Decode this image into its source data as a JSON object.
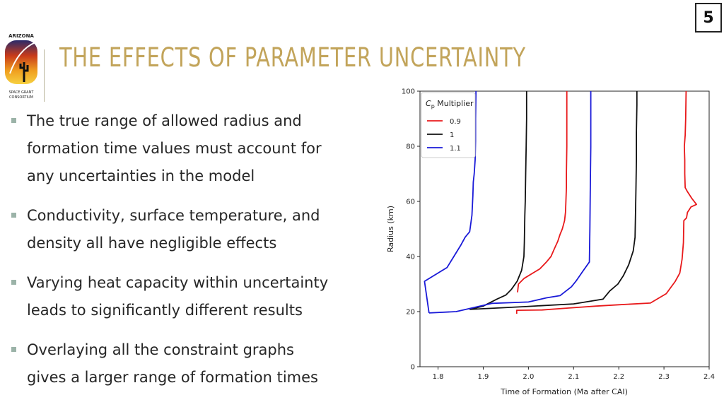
{
  "page_number": "5",
  "logo": {
    "top_text": "ARIZONA",
    "bottom_text_1": "SPACE GRANT",
    "bottom_text_2": "CONSORTIUM"
  },
  "title": "THE EFFECTS OF PARAMETER UNCERTAINTY",
  "bullets": [
    {
      "line1": "The true range of allowed radius and",
      "line2": "formation time values must account for",
      "line3": "any uncertainties in the model"
    },
    {
      "line1": "Conductivity, surface temperature, and",
      "line2": "density all have negligible effects"
    },
    {
      "line1": "Varying heat capacity within uncertainty",
      "line2": "leads to significantly different results"
    },
    {
      "line1": "Overlaying all the constraint graphs",
      "line2": "gives a larger range of formation times"
    }
  ],
  "colors": {
    "title": "#c2a45a",
    "bullet_marker": "#9bb3a8",
    "series_0_9": "#e8191b",
    "series_1": "#111111",
    "series_1_1": "#1a1ad8"
  },
  "chart_data": {
    "type": "line",
    "title": "",
    "xlabel": "Time of Formation (Ma after CAI)",
    "ylabel": "Radius (km)",
    "xlim": [
      1.76,
      2.4
    ],
    "ylim": [
      0,
      100
    ],
    "xticks": [
      "1.8",
      "1.9",
      "2.0",
      "2.1",
      "2.2",
      "2.3",
      "2.4"
    ],
    "yticks": [
      "0",
      "20",
      "40",
      "60",
      "80",
      "100"
    ],
    "grid": false,
    "legend": {
      "title_prefix": "C",
      "title_sub": "p",
      "title_suffix": " Multiplier",
      "placement": "top-left"
    },
    "series": [
      {
        "name": "0.9",
        "color": "#e8191b",
        "points": [
          [
            1.974,
            19.2
          ],
          [
            1.974,
            20.5
          ],
          [
            2.03,
            20.6
          ],
          [
            2.09,
            21.3
          ],
          [
            2.15,
            22.0
          ],
          [
            2.2,
            22.5
          ],
          [
            2.27,
            23.1
          ],
          [
            2.305,
            26.5
          ],
          [
            2.325,
            31.0
          ],
          [
            2.335,
            34.0
          ],
          [
            2.34,
            39.0
          ],
          [
            2.343,
            45.0
          ],
          [
            2.344,
            53.0
          ],
          [
            2.35,
            54.0
          ],
          [
            2.352,
            56.0
          ],
          [
            2.36,
            58.0
          ],
          [
            2.372,
            58.9
          ],
          [
            2.362,
            61.0
          ],
          [
            2.352,
            63.5
          ],
          [
            2.347,
            65.0
          ],
          [
            2.346,
            70.0
          ],
          [
            2.346,
            75.0
          ],
          [
            2.345,
            80.0
          ],
          [
            2.347,
            84.0
          ],
          [
            2.348,
            90.0
          ],
          [
            2.349,
            100
          ]
        ],
        "points_b": [
          [
            1.976,
            27.0
          ],
          [
            1.978,
            30.0
          ],
          [
            1.99,
            32.0
          ],
          [
            2.01,
            34.0
          ],
          [
            2.025,
            35.5
          ],
          [
            2.04,
            38.0
          ],
          [
            2.05,
            40.0
          ],
          [
            2.058,
            43.0
          ],
          [
            2.065,
            45.5
          ],
          [
            2.07,
            48.0
          ],
          [
            2.075,
            50.0
          ],
          [
            2.08,
            53.0
          ],
          [
            2.082,
            56.0
          ],
          [
            2.083,
            60.0
          ],
          [
            2.084,
            65.0
          ],
          [
            2.084,
            70.0
          ],
          [
            2.085,
            80.0
          ],
          [
            2.085,
            90.0
          ],
          [
            2.085,
            100
          ]
        ]
      },
      {
        "name": "1",
        "color": "#111111",
        "points": [
          [
            1.87,
            20.8
          ],
          [
            1.9,
            22.0
          ],
          [
            1.93,
            24.5
          ],
          [
            1.95,
            26.0
          ],
          [
            1.962,
            28.0
          ],
          [
            1.975,
            31.0
          ],
          [
            1.985,
            35.0
          ],
          [
            1.99,
            40.0
          ],
          [
            1.991,
            45.0
          ],
          [
            1.992,
            55.0
          ],
          [
            1.993,
            60.0
          ],
          [
            1.994,
            70.0
          ],
          [
            1.995,
            80.0
          ],
          [
            1.996,
            90.0
          ],
          [
            1.996,
            100
          ]
        ],
        "points_b": [
          [
            1.87,
            20.8
          ],
          [
            1.99,
            21.8
          ],
          [
            2.1,
            22.8
          ],
          [
            2.165,
            24.5
          ],
          [
            2.18,
            27.5
          ],
          [
            2.198,
            30.0
          ],
          [
            2.21,
            33.0
          ],
          [
            2.222,
            37.0
          ],
          [
            2.232,
            42.0
          ],
          [
            2.236,
            47.0
          ],
          [
            2.237,
            55.0
          ],
          [
            2.238,
            65.0
          ],
          [
            2.239,
            75.0
          ],
          [
            2.239,
            85.0
          ],
          [
            2.24,
            95.0
          ],
          [
            2.24,
            100
          ]
        ]
      },
      {
        "name": "1.1",
        "color": "#1a1ad8",
        "points": [
          [
            1.78,
            19.5
          ],
          [
            1.84,
            20.0
          ],
          [
            1.88,
            21.5
          ],
          [
            1.92,
            23.0
          ],
          [
            2.0,
            23.5
          ],
          [
            2.04,
            25.0
          ],
          [
            2.07,
            25.8
          ],
          [
            2.095,
            29.0
          ],
          [
            2.105,
            31.0
          ],
          [
            2.122,
            35.0
          ],
          [
            2.135,
            38.0
          ],
          [
            2.136,
            50.0
          ],
          [
            2.137,
            65.0
          ],
          [
            2.138,
            80.0
          ],
          [
            2.138,
            100
          ]
        ],
        "points_b": [
          [
            1.78,
            19.5
          ],
          [
            1.77,
            31.0
          ],
          [
            1.82,
            36.0
          ],
          [
            1.835,
            40.0
          ],
          [
            1.85,
            44.0
          ],
          [
            1.86,
            47.0
          ],
          [
            1.87,
            49.0
          ],
          [
            1.875,
            55.0
          ],
          [
            1.877,
            62.0
          ],
          [
            1.878,
            67.0
          ],
          [
            1.88,
            70.0
          ],
          [
            1.882,
            75.0
          ],
          [
            1.883,
            82.0
          ],
          [
            1.883,
            90.0
          ],
          [
            1.884,
            100
          ]
        ]
      }
    ]
  }
}
